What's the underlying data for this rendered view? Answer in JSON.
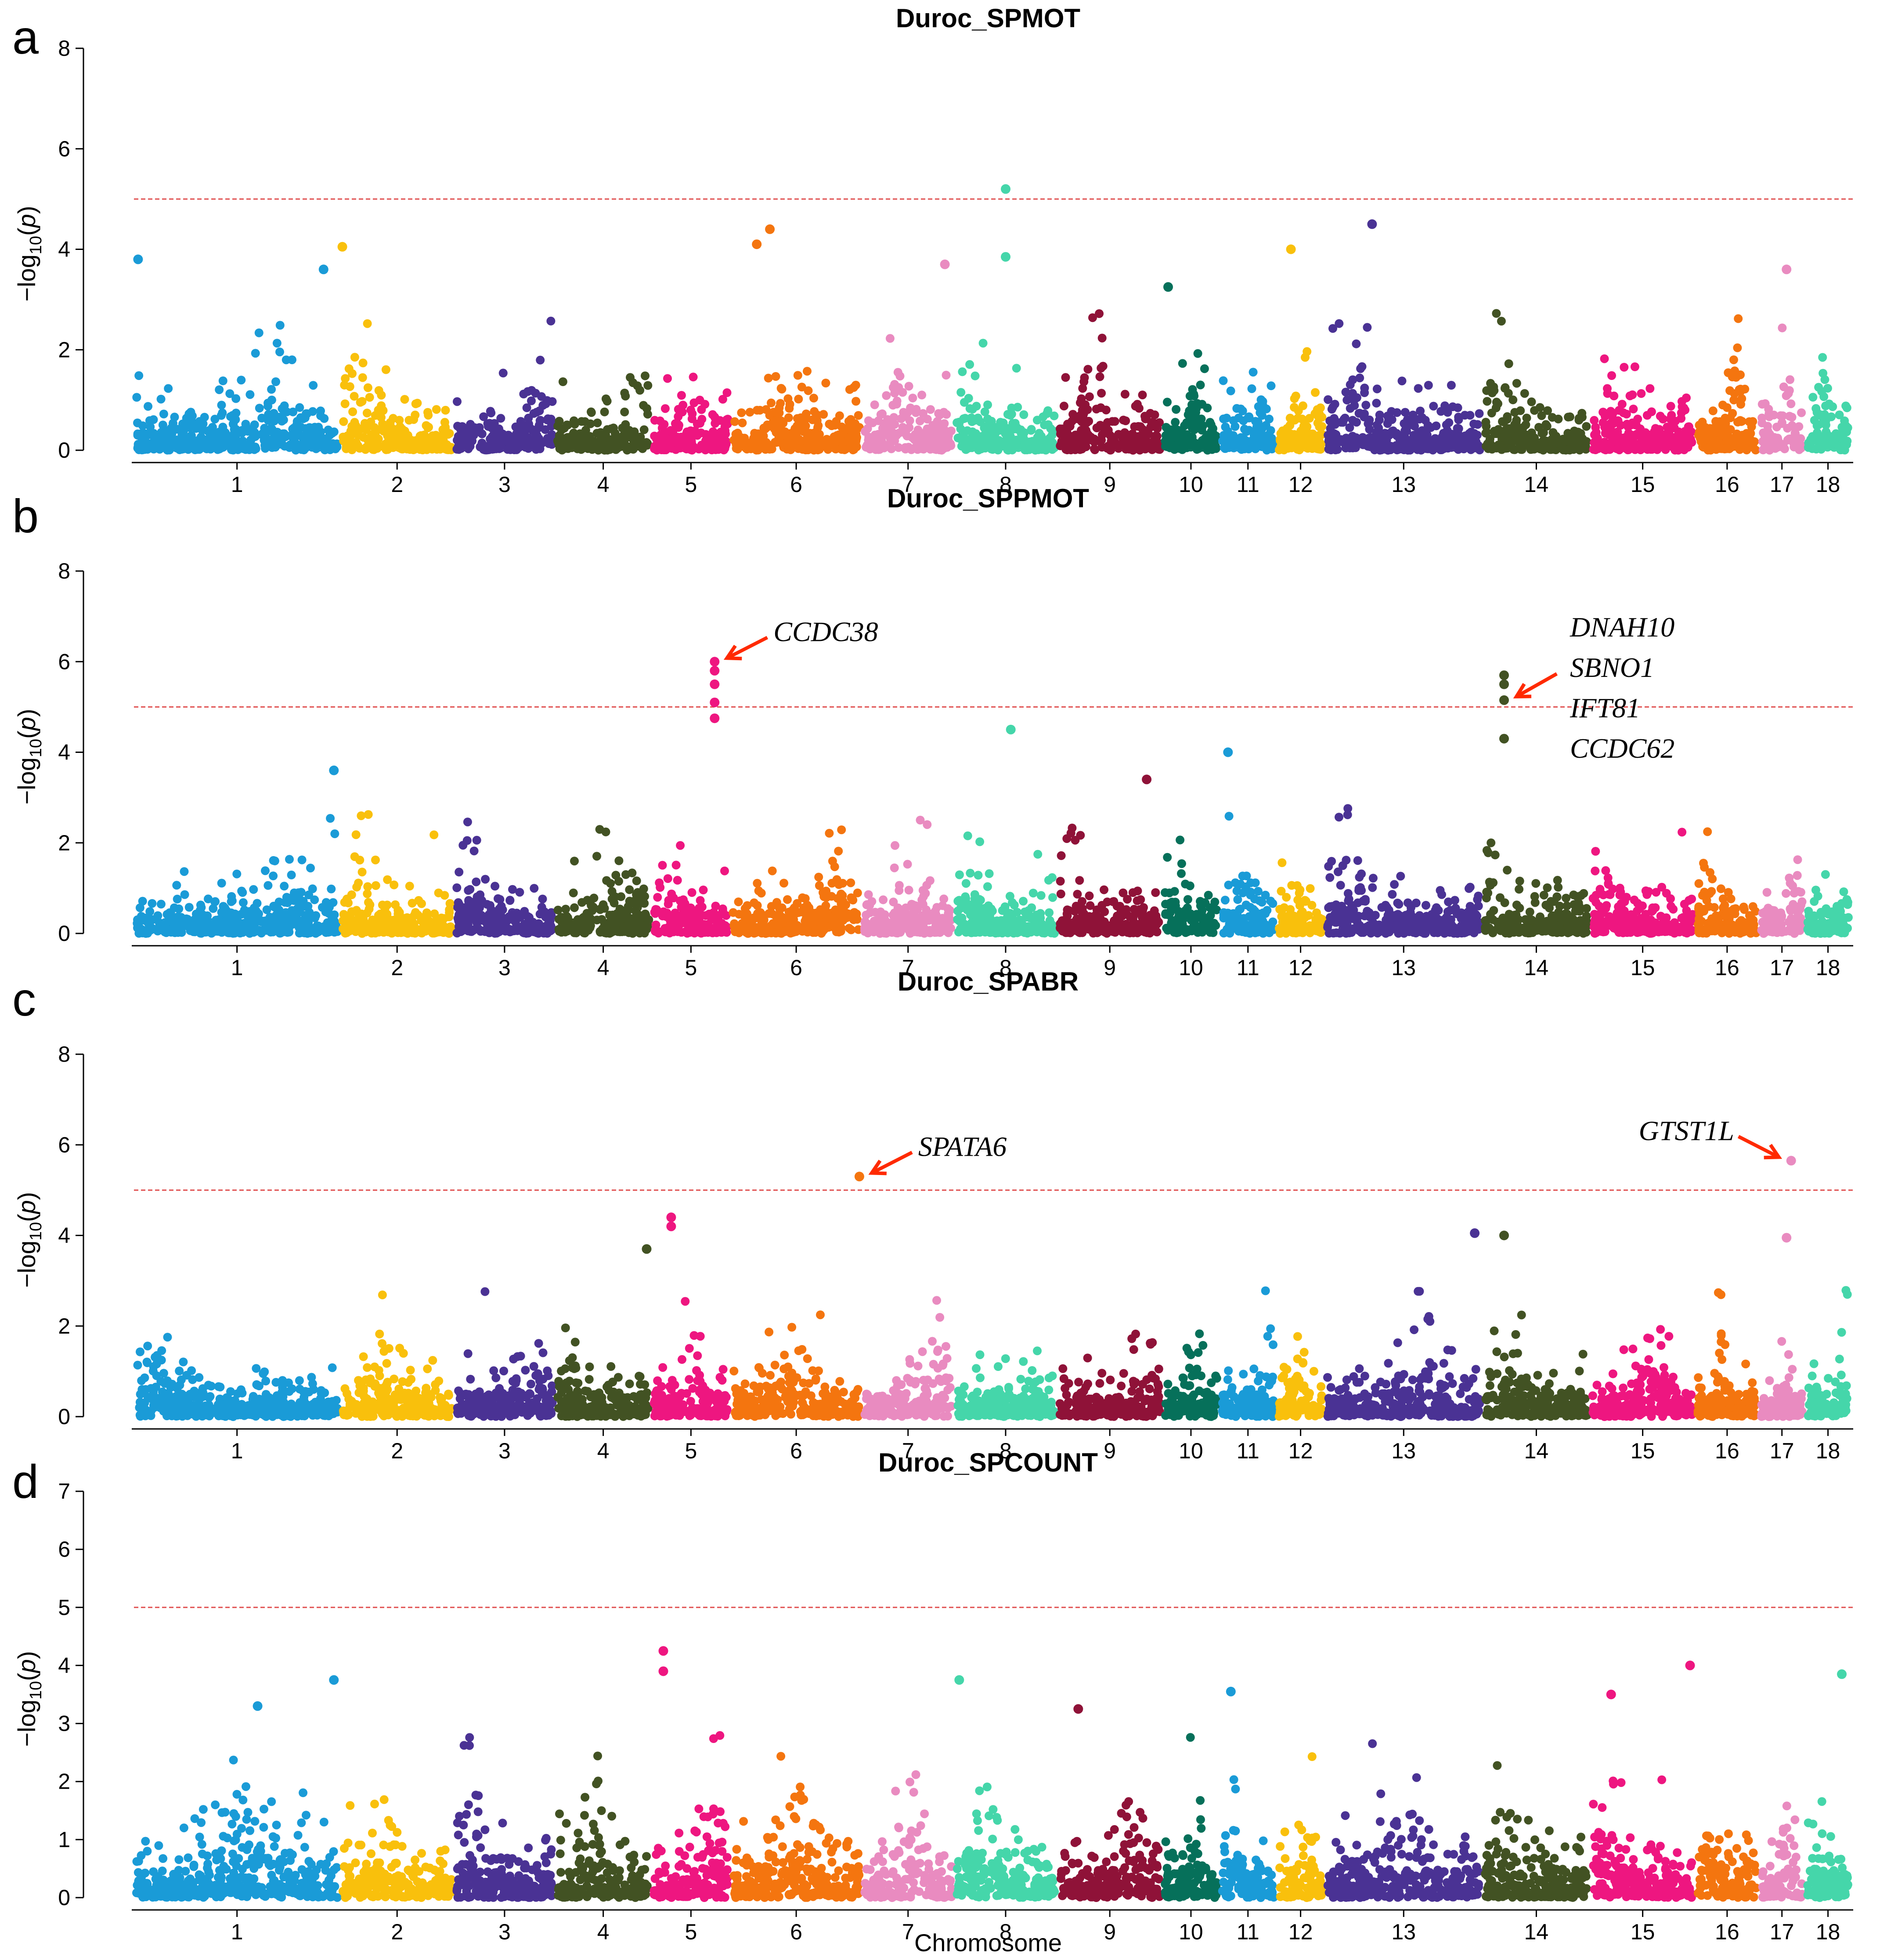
{
  "figure": {
    "xlabel": "Chromosome",
    "ylabel_main": "−log",
    "ylabel_sub": "10",
    "ylabel_open": "(",
    "ylabel_var": "p",
    "ylabel_close": ")",
    "threshold_color": "#e05050"
  },
  "chart_data": [
    {
      "type": "scatter",
      "subtype": "manhattan",
      "letter": "a",
      "title": "Duroc_SPMOT",
      "ylim": [
        0,
        8
      ],
      "yticks": [
        "0",
        "2",
        "4",
        "6",
        "8"
      ],
      "threshold": 5,
      "chromosomes": [
        "1",
        "2",
        "3",
        "4",
        "5",
        "6",
        "7",
        "8",
        "9",
        "10",
        "11",
        "12",
        "13",
        "14",
        "15",
        "16",
        "17",
        "18"
      ],
      "highlights": [
        {
          "chr": "8",
          "pos": 0.5,
          "value": 5.2
        },
        {
          "chr": "13",
          "pos": 0.3,
          "value": 4.5
        },
        {
          "chr": "6",
          "pos": 0.3,
          "value": 4.4
        },
        {
          "chr": "6",
          "pos": 0.2,
          "value": 4.1
        },
        {
          "chr": "2",
          "pos": 0.02,
          "value": 4.05
        },
        {
          "chr": "12",
          "pos": 0.3,
          "value": 4.0
        },
        {
          "chr": "1",
          "pos": 0.02,
          "value": 3.8
        },
        {
          "chr": "8",
          "pos": 0.5,
          "value": 3.85
        },
        {
          "chr": "7",
          "pos": 0.9,
          "value": 3.7
        },
        {
          "chr": "17",
          "pos": 0.6,
          "value": 3.6
        },
        {
          "chr": "1",
          "pos": 0.92,
          "value": 3.6
        },
        {
          "chr": "10",
          "pos": 0.1,
          "value": 3.25
        }
      ],
      "annotations": []
    },
    {
      "type": "scatter",
      "subtype": "manhattan",
      "letter": "b",
      "title": "Duroc_SPPMOT",
      "ylim": [
        0,
        8
      ],
      "yticks": [
        "0",
        "2",
        "4",
        "6",
        "8"
      ],
      "threshold": 5,
      "chromosomes": [
        "1",
        "2",
        "3",
        "4",
        "5",
        "6",
        "7",
        "8",
        "9",
        "10",
        "11",
        "12",
        "13",
        "14",
        "15",
        "16",
        "17",
        "18"
      ],
      "highlights": [
        {
          "chr": "5",
          "pos": 0.8,
          "value": 6.0
        },
        {
          "chr": "5",
          "pos": 0.8,
          "value": 5.8
        },
        {
          "chr": "5",
          "pos": 0.8,
          "value": 5.5
        },
        {
          "chr": "5",
          "pos": 0.8,
          "value": 5.1
        },
        {
          "chr": "5",
          "pos": 0.8,
          "value": 4.75
        },
        {
          "chr": "14",
          "pos": 0.2,
          "value": 5.7
        },
        {
          "chr": "14",
          "pos": 0.2,
          "value": 5.5
        },
        {
          "chr": "14",
          "pos": 0.2,
          "value": 5.15
        },
        {
          "chr": "14",
          "pos": 0.2,
          "value": 4.3
        },
        {
          "chr": "8",
          "pos": 0.55,
          "value": 4.5
        },
        {
          "chr": "11",
          "pos": 0.15,
          "value": 4.0
        },
        {
          "chr": "1",
          "pos": 0.97,
          "value": 3.6
        },
        {
          "chr": "9",
          "pos": 0.85,
          "value": 3.4
        }
      ],
      "annotations": [
        {
          "chr": "5",
          "pos": 0.8,
          "value": 6.0,
          "genes": [
            "CCDC38"
          ]
        },
        {
          "chr": "14",
          "pos": 0.2,
          "value": 5.15,
          "genes": [
            "DNAH10",
            "SBNO1",
            "IFT81",
            "CCDC62"
          ]
        }
      ]
    },
    {
      "type": "scatter",
      "subtype": "manhattan",
      "letter": "c",
      "title": "Duroc_SPABR",
      "ylim": [
        0,
        8
      ],
      "yticks": [
        "0",
        "2",
        "4",
        "6",
        "8"
      ],
      "threshold": 5,
      "chromosomes": [
        "1",
        "2",
        "3",
        "4",
        "5",
        "6",
        "7",
        "8",
        "9",
        "10",
        "11",
        "12",
        "13",
        "14",
        "15",
        "16",
        "17",
        "18"
      ],
      "highlights": [
        {
          "chr": "6",
          "pos": 0.98,
          "value": 5.3
        },
        {
          "chr": "17",
          "pos": 0.7,
          "value": 5.65
        },
        {
          "chr": "5",
          "pos": 0.25,
          "value": 4.4
        },
        {
          "chr": "5",
          "pos": 0.25,
          "value": 4.2
        },
        {
          "chr": "13",
          "pos": 0.95,
          "value": 4.05
        },
        {
          "chr": "14",
          "pos": 0.2,
          "value": 4.0
        },
        {
          "chr": "17",
          "pos": 0.6,
          "value": 3.95
        },
        {
          "chr": "4",
          "pos": 0.95,
          "value": 3.7
        }
      ],
      "annotations": [
        {
          "chr": "6",
          "pos": 0.98,
          "value": 5.3,
          "genes": [
            "SPATA6"
          ]
        },
        {
          "chr": "17",
          "pos": 0.7,
          "value": 5.65,
          "genes": [
            "GTST1L"
          ]
        }
      ]
    },
    {
      "type": "scatter",
      "subtype": "manhattan",
      "letter": "d",
      "title": "Duroc_SPCOUNT",
      "ylim": [
        0,
        7
      ],
      "yticks": [
        "0",
        "1",
        "2",
        "3",
        "4",
        "5",
        "6",
        "7"
      ],
      "threshold": 5,
      "chromosomes": [
        "1",
        "2",
        "3",
        "4",
        "5",
        "6",
        "7",
        "8",
        "9",
        "10",
        "11",
        "12",
        "13",
        "14",
        "15",
        "16",
        "17",
        "18"
      ],
      "highlights": [
        {
          "chr": "5",
          "pos": 0.15,
          "value": 4.25
        },
        {
          "chr": "15",
          "pos": 0.95,
          "value": 4.0
        },
        {
          "chr": "5",
          "pos": 0.15,
          "value": 3.9
        },
        {
          "chr": "18",
          "pos": 0.8,
          "value": 3.85
        },
        {
          "chr": "1",
          "pos": 0.97,
          "value": 3.75
        },
        {
          "chr": "8",
          "pos": 0.05,
          "value": 3.75
        },
        {
          "chr": "11",
          "pos": 0.2,
          "value": 3.55
        },
        {
          "chr": "15",
          "pos": 0.2,
          "value": 3.5
        },
        {
          "chr": "1",
          "pos": 0.6,
          "value": 3.3
        },
        {
          "chr": "9",
          "pos": 0.2,
          "value": 3.25
        }
      ],
      "annotations": []
    }
  ]
}
